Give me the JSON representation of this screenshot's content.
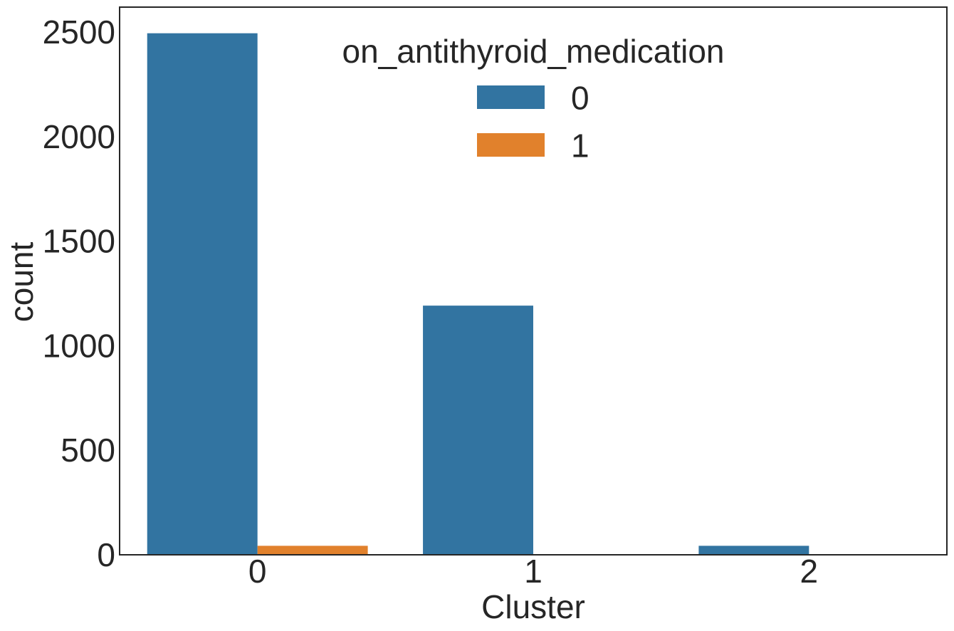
{
  "chart_data": {
    "type": "bar",
    "categories": [
      "0",
      "1",
      "2"
    ],
    "series": [
      {
        "name": "0",
        "values": [
          2495,
          1192,
          43
        ],
        "color": "#3274a1"
      },
      {
        "name": "1",
        "values": [
          43,
          2,
          0
        ],
        "color": "#e1812c"
      }
    ],
    "xlabel": "Cluster",
    "ylabel": "count",
    "ylim": [
      0,
      2620
    ],
    "yticks": [
      0,
      500,
      1000,
      1500,
      2000,
      2500
    ],
    "legend": {
      "title": "on_antithyroid_medication",
      "placement": "top-center"
    },
    "grid": false
  }
}
